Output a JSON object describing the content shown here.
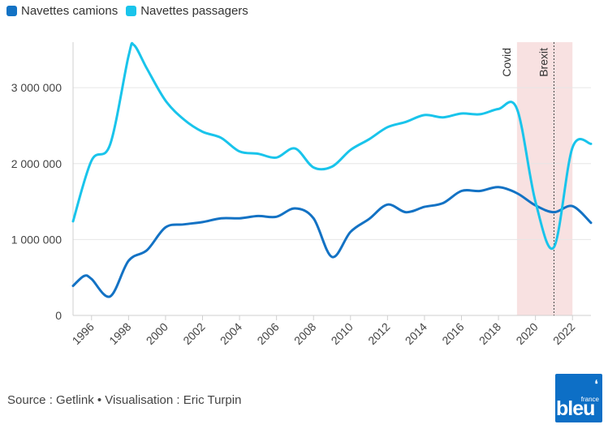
{
  "chart_data": {
    "type": "line",
    "xlim": [
      1995,
      2023
    ],
    "ylim": [
      0,
      3600000
    ],
    "y_ticks": [
      0,
      1000000,
      2000000,
      3000000
    ],
    "y_tick_labels": [
      "0",
      "1 000 000",
      "2 000 000",
      "3 000 000"
    ],
    "x_tick_labels": [
      "1996",
      "1998",
      "2000",
      "2002",
      "2004",
      "2006",
      "2008",
      "2010",
      "2012",
      "2014",
      "2016",
      "2018",
      "2020",
      "2022"
    ],
    "series": [
      {
        "name": "Navettes camions",
        "color": "#1372c4",
        "x": [
          1995,
          1995.6,
          1996,
          1997,
          1998,
          1999,
          2000,
          2001,
          2002,
          2003,
          2004,
          2005,
          2006,
          2007,
          2008,
          2009,
          2010,
          2011,
          2012,
          2013,
          2014,
          2015,
          2016,
          2017,
          2018,
          2019,
          2020,
          2021,
          2022,
          2023
        ],
        "values": [
          390000,
          520000,
          480000,
          250000,
          720000,
          860000,
          1160000,
          1200000,
          1230000,
          1280000,
          1280000,
          1310000,
          1300000,
          1410000,
          1280000,
          770000,
          1100000,
          1270000,
          1460000,
          1360000,
          1430000,
          1480000,
          1640000,
          1640000,
          1690000,
          1610000,
          1450000,
          1360000,
          1440000,
          1220000
        ]
      },
      {
        "name": "Navettes passagers",
        "color": "#19c4eb",
        "x": [
          1995,
          1996,
          1997,
          1998,
          1998.3,
          1999,
          2000,
          2001,
          2002,
          2003,
          2004,
          2005,
          2006,
          2007,
          2008,
          2009,
          2010,
          2011,
          2012,
          2013,
          2014,
          2015,
          2016,
          2017,
          2018,
          2019,
          2020,
          2021,
          2022,
          2023
        ],
        "values": [
          1240000,
          2040000,
          2250000,
          3420000,
          3560000,
          3250000,
          2830000,
          2580000,
          2420000,
          2340000,
          2160000,
          2130000,
          2080000,
          2200000,
          1950000,
          1960000,
          2180000,
          2320000,
          2480000,
          2550000,
          2640000,
          2610000,
          2660000,
          2650000,
          2720000,
          2720000,
          1500000,
          900000,
          2210000,
          2260000
        ]
      }
    ],
    "shaded_region": [
      2019,
      2022
    ],
    "shaded_color": "#f8e1e1",
    "annotations": [
      {
        "label": "Covid",
        "x": 2019
      },
      {
        "label": "Brexit",
        "x": 2021
      }
    ]
  },
  "source": "Source : Getlink • Visualisation : Eric Turpin",
  "logo": {
    "main": "bleu",
    "small": "france",
    "mark": "❛"
  }
}
